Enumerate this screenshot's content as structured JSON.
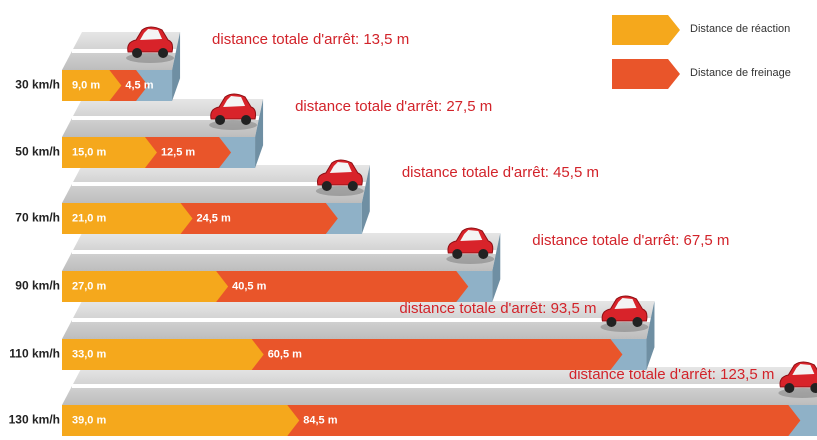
{
  "chart_data": {
    "type": "bar",
    "orientation": "horizontal",
    "stacked": true,
    "categories": [
      "30 km/h",
      "50 km/h",
      "70 km/h",
      "90 km/h",
      "110 km/h",
      "130 km/h"
    ],
    "series": [
      {
        "name": "Distance de réaction",
        "color": "#f5a81c",
        "values": [
          9.0,
          15.0,
          21.0,
          27.0,
          33.0,
          39.0
        ],
        "value_labels": [
          "9,0 m",
          "15,0 m",
          "21,0 m",
          "27,0 m",
          "33,0 m",
          "39,0 m"
        ]
      },
      {
        "name": "Distance de freinage",
        "color": "#e9552a",
        "values": [
          4.5,
          12.5,
          24.5,
          40.5,
          60.5,
          84.5
        ],
        "value_labels": [
          "4,5 m",
          "12,5 m",
          "24,5 m",
          "40,5 m",
          "60,5 m",
          "84,5 m"
        ]
      }
    ],
    "annotations": [
      "distance totale d'arrêt: 13,5 m",
      "distance totale d'arrêt: 27,5 m",
      "distance totale d'arrêt: 45,5 m",
      "distance totale d'arrêt: 67,5 m",
      "distance totale d'arrêt: 93,5 m",
      "distance totale d'arrêt: 123,5 m"
    ],
    "legend": "top-right"
  }
}
